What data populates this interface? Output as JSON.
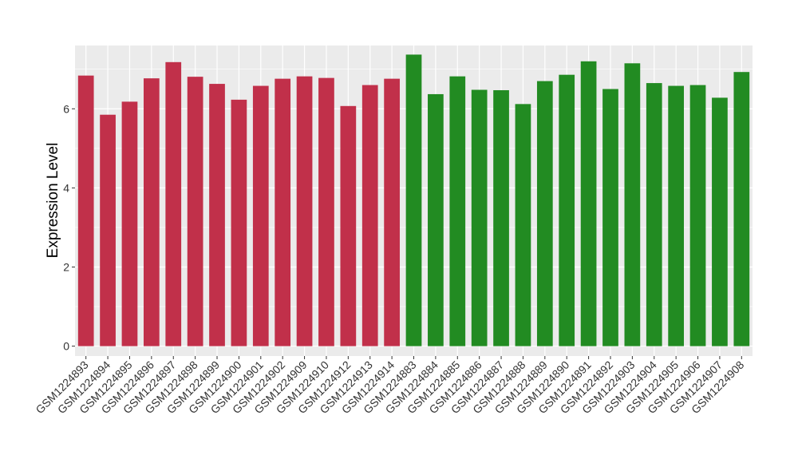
{
  "chart_data": {
    "type": "bar",
    "title": "",
    "xlabel": "",
    "ylabel": "Expression Level",
    "ylim": [
      -0.25,
      7.6
    ],
    "yticks": [
      0,
      2,
      4,
      6
    ],
    "grid": true,
    "categories": [
      "GSM1224893",
      "GSM1224894",
      "GSM1224895",
      "GSM1224896",
      "GSM1224897",
      "GSM1224898",
      "GSM1224899",
      "GSM1224900",
      "GSM1224901",
      "GSM1224902",
      "GSM1224909",
      "GSM1224910",
      "GSM1224912",
      "GSM1224913",
      "GSM1224914",
      "GSM1224883",
      "GSM1224884",
      "GSM1224885",
      "GSM1224886",
      "GSM1224887",
      "GSM1224888",
      "GSM1224889",
      "GSM1224890",
      "GSM1224891",
      "GSM1224892",
      "GSM1224903",
      "GSM1224904",
      "GSM1224905",
      "GSM1224906",
      "GSM1224907",
      "GSM1224908"
    ],
    "values": [
      6.84,
      5.85,
      6.18,
      6.77,
      7.18,
      6.81,
      6.63,
      6.23,
      6.58,
      6.76,
      6.82,
      6.78,
      6.07,
      6.6,
      6.76,
      7.37,
      6.37,
      6.82,
      6.48,
      6.47,
      6.12,
      6.7,
      6.86,
      7.2,
      6.5,
      7.15,
      6.65,
      6.58,
      6.6,
      6.28,
      6.93
    ],
    "bar_colors": [
      "#c1304a",
      "#c1304a",
      "#c1304a",
      "#c1304a",
      "#c1304a",
      "#c1304a",
      "#c1304a",
      "#c1304a",
      "#c1304a",
      "#c1304a",
      "#c1304a",
      "#c1304a",
      "#c1304a",
      "#c1304a",
      "#c1304a",
      "#228b22",
      "#228b22",
      "#228b22",
      "#228b22",
      "#228b22",
      "#228b22",
      "#228b22",
      "#228b22",
      "#228b22",
      "#228b22",
      "#228b22",
      "#228b22",
      "#228b22",
      "#228b22",
      "#228b22",
      "#228b22"
    ],
    "panel_background": "#ebebeb",
    "gridline_color": "#ffffff"
  }
}
